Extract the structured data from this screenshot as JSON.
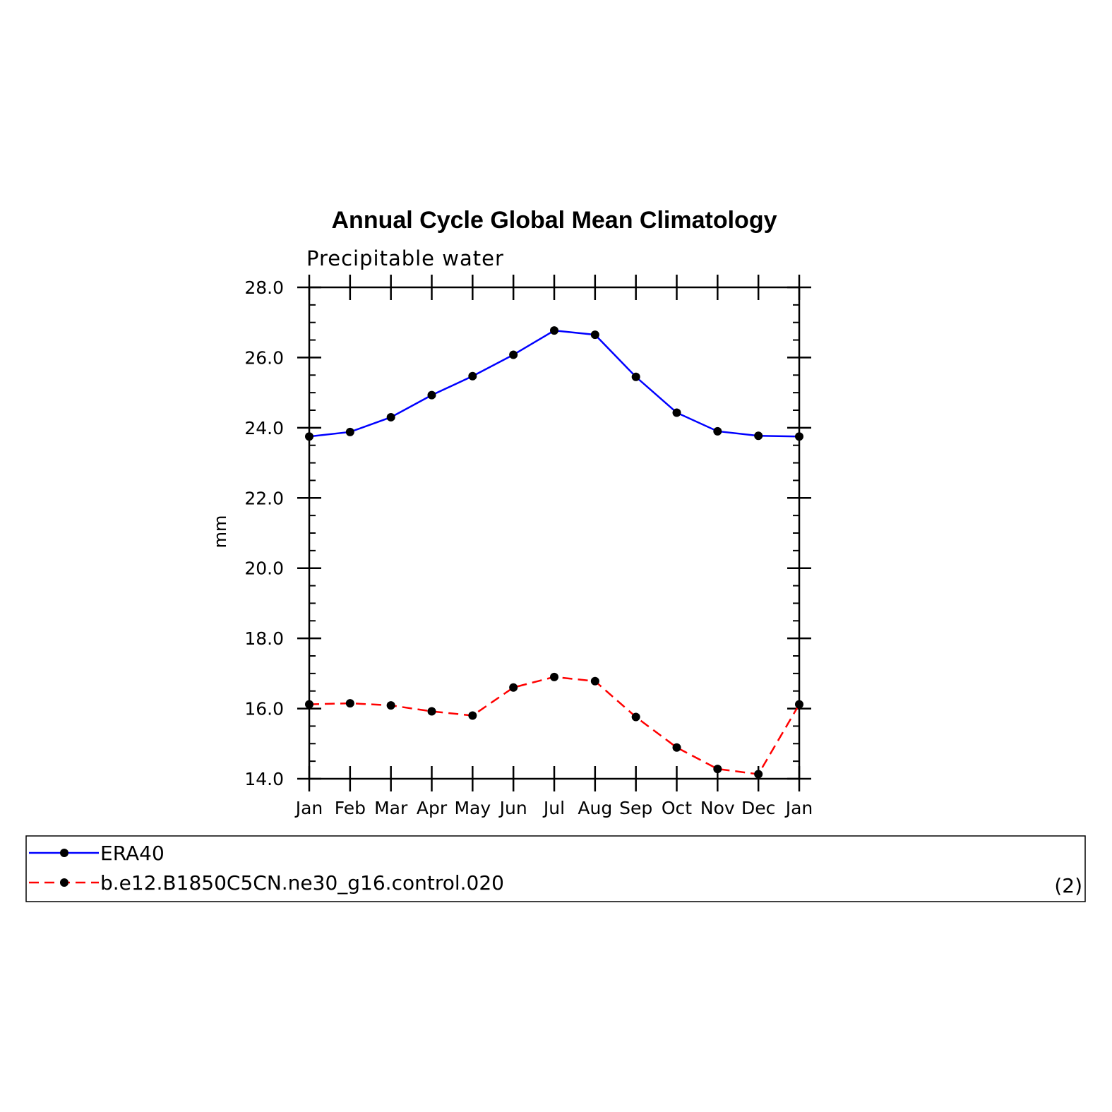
{
  "chart_data": {
    "type": "line",
    "title": "Annual Cycle Global Mean Climatology",
    "subtitle": "Precipitable water",
    "xlabel": "",
    "ylabel": "mm",
    "categories": [
      "Jan",
      "Feb",
      "Mar",
      "Apr",
      "May",
      "Jun",
      "Jul",
      "Aug",
      "Sep",
      "Oct",
      "Nov",
      "Dec",
      "Jan"
    ],
    "ylim": [
      14.0,
      28.0
    ],
    "yticks": [
      "14.0",
      "16.0",
      "18.0",
      "20.0",
      "22.0",
      "24.0",
      "26.0",
      "28.0"
    ],
    "grid": false,
    "series": [
      {
        "name": "ERA40",
        "color": "#0000ff",
        "dash": "solid",
        "marker": "dot",
        "values": [
          23.75,
          23.88,
          24.3,
          24.93,
          25.47,
          26.08,
          26.77,
          26.65,
          25.45,
          24.43,
          23.9,
          23.77,
          23.75
        ]
      },
      {
        "name": "b.e12.B1850C5CN.ne30_g16.control.020",
        "color": "#ff0000",
        "dash": "dashed",
        "marker": "dot",
        "values": [
          16.12,
          16.15,
          16.09,
          15.92,
          15.8,
          16.6,
          16.9,
          16.78,
          15.76,
          14.89,
          14.28,
          14.13,
          16.12
        ]
      }
    ],
    "legend": {
      "placement": "bottom",
      "note": "(2)"
    }
  }
}
